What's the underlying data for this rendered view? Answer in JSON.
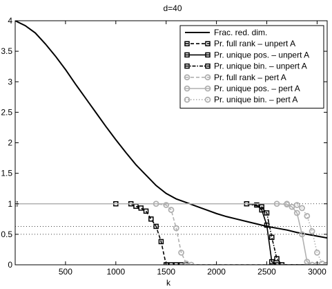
{
  "chart_data": {
    "type": "line",
    "title": "d=40",
    "xlabel": "k",
    "ylabel": "",
    "xlim": [
      0,
      3100
    ],
    "ylim": [
      0,
      4
    ],
    "xticks": [
      500,
      1000,
      1500,
      2000,
      2500,
      3000
    ],
    "yticks": [
      0,
      0.5,
      1,
      1.5,
      2,
      2.5,
      3,
      3.5,
      4
    ],
    "xtick_labels": [
      "500",
      "1000",
      "1500",
      "2000",
      "2500",
      "3000"
    ],
    "ytick_labels": [
      "0",
      "0.5",
      "1",
      "1.5",
      "2",
      "2.5",
      "3",
      "3.5",
      "4"
    ],
    "grid": false,
    "legend_position": "top-right",
    "reference_lines": [
      {
        "y": 1.0,
        "style": "dotted",
        "color": "#000000"
      },
      {
        "y": 0.63,
        "style": "dotted",
        "color": "#000000"
      },
      {
        "y": 0.5,
        "style": "dotted",
        "color": "#000000"
      }
    ],
    "series": [
      {
        "name": "Frac. red. dim.",
        "color": "#000000",
        "dash": "solid",
        "marker": "none",
        "x": [
          0,
          100,
          200,
          300,
          400,
          500,
          600,
          700,
          800,
          900,
          1000,
          1100,
          1200,
          1300,
          1400,
          1500,
          1600,
          1700,
          1800,
          1900,
          2000,
          2100,
          2200,
          2300,
          2400,
          2500,
          2600,
          2700,
          2800,
          2900,
          3000,
          3100
        ],
        "y": [
          4.0,
          3.92,
          3.8,
          3.62,
          3.42,
          3.2,
          2.96,
          2.73,
          2.5,
          2.27,
          2.05,
          1.84,
          1.64,
          1.47,
          1.3,
          1.17,
          1.08,
          1.02,
          0.96,
          0.9,
          0.84,
          0.79,
          0.75,
          0.71,
          0.67,
          0.63,
          0.6,
          0.57,
          0.53,
          0.5,
          0.47,
          0.44
        ]
      },
      {
        "name": "Pr. full rank – unpert A",
        "color": "#000000",
        "dash": "dashed",
        "marker": "square",
        "x": [
          0,
          1000,
          1150,
          1200,
          1250,
          1300,
          1350,
          1400,
          1450,
          1500,
          1550,
          1600,
          1650,
          1700,
          3100
        ],
        "y": [
          1,
          1,
          1,
          0.96,
          0.93,
          0.88,
          0.75,
          0.63,
          0.38,
          0.0,
          0.0,
          0.0,
          0.0,
          0.0,
          0
        ]
      },
      {
        "name": "Pr. unique pos. – unpert A",
        "color": "#000000",
        "dash": "solid",
        "marker": "square",
        "x": [
          0,
          2300,
          2400,
          2450,
          2500,
          2550,
          2600,
          3100
        ],
        "y": [
          1,
          1,
          0.98,
          0.9,
          0.65,
          0.05,
          0.0,
          0
        ]
      },
      {
        "name": "Pr. unique bin. – unpert A",
        "color": "#000000",
        "dash": "dashdot",
        "marker": "square",
        "x": [
          0,
          2300,
          2450,
          2500,
          2550,
          2600,
          2650,
          3100
        ],
        "y": [
          1,
          1,
          0.95,
          0.85,
          0.45,
          0.1,
          0.0,
          0
        ]
      },
      {
        "name": "Pr. full rank – pert A",
        "color": "#b0b0b0",
        "dash": "dashed",
        "marker": "circle",
        "x": [
          0,
          1400,
          1500,
          1550,
          1600,
          1650,
          1700,
          1750,
          3100
        ],
        "y": [
          1,
          1,
          0.98,
          0.9,
          0.6,
          0.2,
          0.02,
          0.0,
          0
        ]
      },
      {
        "name": "Pr. unique pos. – pert A",
        "color": "#b0b0b0",
        "dash": "solid",
        "marker": "circle",
        "x": [
          0,
          2600,
          2700,
          2750,
          2800,
          2850,
          2900,
          2950,
          3000,
          3100
        ],
        "y": [
          1,
          1,
          0.99,
          0.95,
          0.85,
          0.5,
          0.05,
          0.0,
          0.0,
          0
        ]
      },
      {
        "name": "Pr. unique bin. – pert A",
        "color": "#b0b0b0",
        "dash": "dotted",
        "marker": "circle",
        "x": [
          0,
          2700,
          2800,
          2850,
          2900,
          2950,
          3000,
          3050,
          3100
        ],
        "y": [
          1,
          1,
          0.98,
          0.93,
          0.8,
          0.55,
          0.2,
          0.02,
          0.0
        ]
      }
    ]
  }
}
